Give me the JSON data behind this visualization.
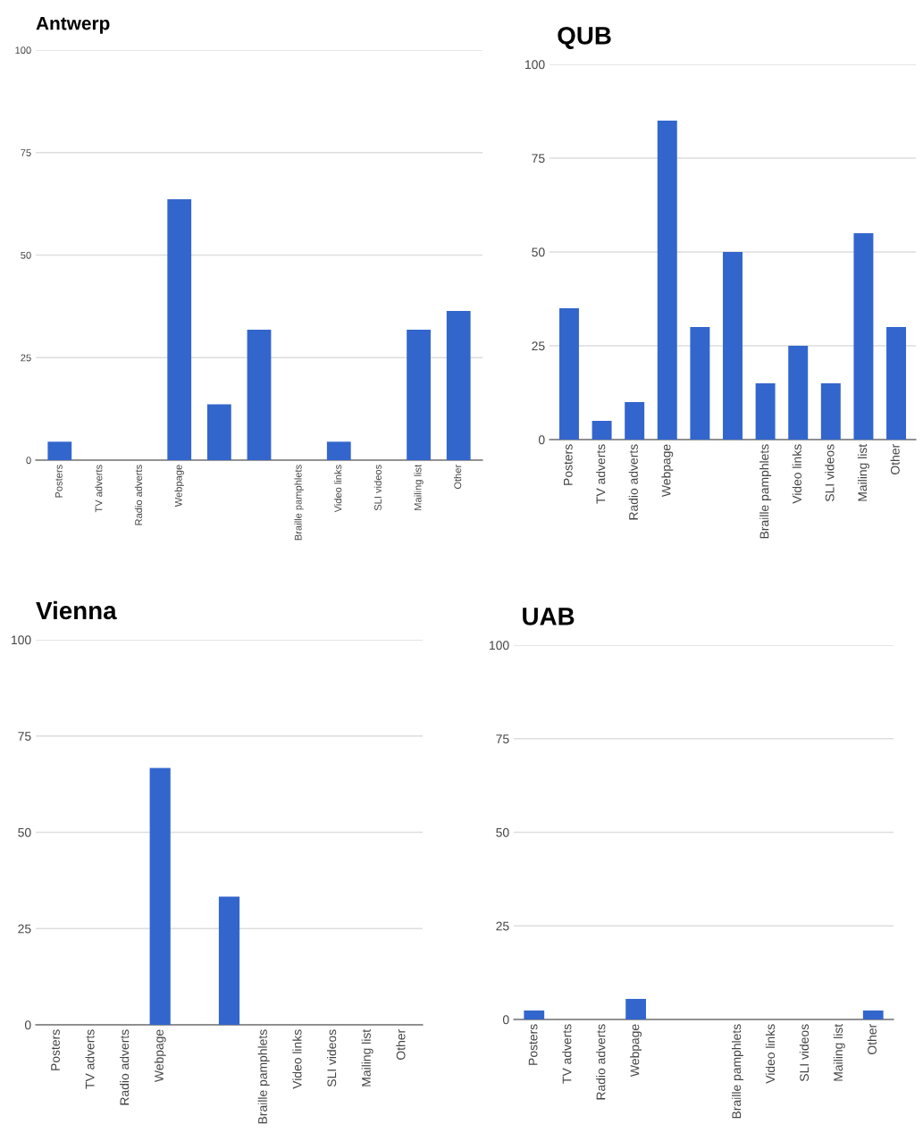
{
  "chart_data": [
    {
      "type": "bar",
      "title": "Antwerp",
      "categories": [
        "Posters",
        "TV adverts",
        "Radio adverts",
        "Webpage",
        null,
        null,
        "Braille pamphlets",
        "Video links",
        "SLI videos",
        "Mailing list",
        "Other"
      ],
      "values": [
        4.5,
        0,
        0,
        63.6,
        13.6,
        31.8,
        0,
        4.5,
        0,
        31.8,
        36.4
      ],
      "color": "#3366cc",
      "ylim": [
        0,
        100
      ],
      "yticks": [
        0,
        25,
        50,
        75,
        100
      ],
      "grid": "y"
    },
    {
      "type": "bar",
      "title": "QUB",
      "categories": [
        "Posters",
        "TV adverts",
        "Radio adverts",
        "Webpage",
        null,
        null,
        "Braille pamphlets",
        "Video links",
        "SLI videos",
        "Mailing list",
        "Other"
      ],
      "values": [
        35,
        5,
        10,
        85,
        30,
        50,
        15,
        25,
        15,
        55,
        30
      ],
      "color": "#3366cc",
      "ylim": [
        0,
        100
      ],
      "yticks": [
        0,
        25,
        50,
        75,
        100
      ],
      "grid": "y"
    },
    {
      "type": "bar",
      "title": "Vienna",
      "categories": [
        "Posters",
        "TV adverts",
        "Radio adverts",
        "Webpage",
        null,
        null,
        "Braille pamphlets",
        "Video links",
        "SLI videos",
        "Mailing list",
        "Other"
      ],
      "values": [
        0,
        0,
        0,
        66.7,
        0,
        33.3,
        0,
        0,
        0,
        0,
        0
      ],
      "color": "#3366cc",
      "ylim": [
        0,
        100
      ],
      "yticks": [
        0,
        25,
        50,
        75,
        100
      ],
      "grid": "y"
    },
    {
      "type": "bar",
      "title": "UAB",
      "categories": [
        "Posters",
        "TV adverts",
        "Radio adverts",
        "Webpage",
        null,
        null,
        "Braille pamphlets",
        "Video links",
        "SLI videos",
        "Mailing list",
        "Other"
      ],
      "values": [
        2.4,
        0,
        0,
        5.5,
        0,
        0,
        0,
        0,
        0,
        0,
        2.4
      ],
      "color": "#3366cc",
      "ylim": [
        0,
        100
      ],
      "yticks": [
        0,
        25,
        50,
        75,
        100
      ],
      "grid": "y"
    }
  ]
}
